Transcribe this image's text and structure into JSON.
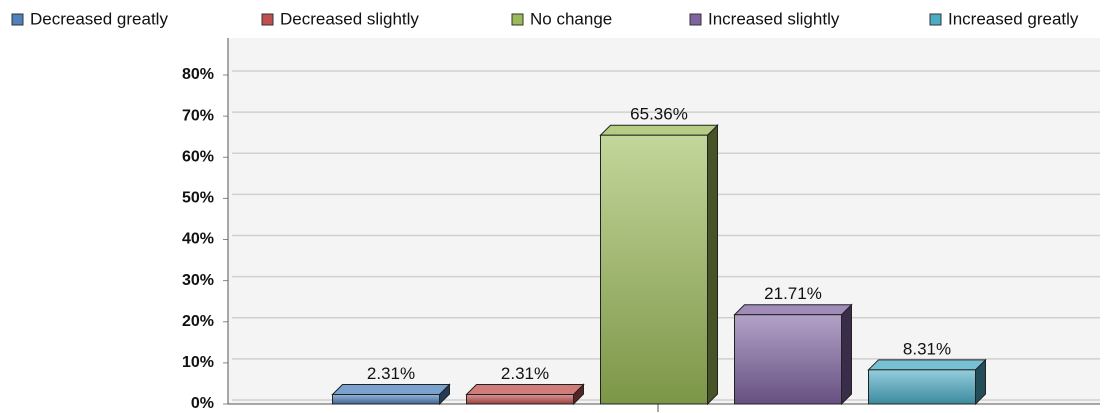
{
  "chart_data": {
    "type": "bar",
    "categories": [
      null
    ],
    "series": [
      {
        "name": "Decreased greatly",
        "color": "#4f81bd",
        "values": [
          2.31
        ],
        "value_labels": [
          "2.31%"
        ]
      },
      {
        "name": "Decreased slightly",
        "color": "#c0504d",
        "values": [
          2.31
        ],
        "value_labels": [
          "2.31%"
        ]
      },
      {
        "name": "No change",
        "color": "#9bbb59",
        "values": [
          65.36
        ],
        "value_labels": [
          "65.36%"
        ]
      },
      {
        "name": "Increased slightly",
        "color": "#8064a2",
        "values": [
          21.71
        ],
        "value_labels": [
          "21.71%"
        ]
      },
      {
        "name": "Increased greatly",
        "color": "#4bacc6",
        "values": [
          8.31
        ],
        "value_labels": [
          "8.31%"
        ]
      }
    ],
    "ylim": [
      0,
      89
    ],
    "yticks": [
      {
        "value": 0,
        "label": "0%"
      },
      {
        "value": 10,
        "label": "10%"
      },
      {
        "value": 20,
        "label": "20%"
      },
      {
        "value": 30,
        "label": "30%"
      },
      {
        "value": 40,
        "label": "40%"
      },
      {
        "value": 50,
        "label": "50%"
      },
      {
        "value": 60,
        "label": "60%"
      },
      {
        "value": 70,
        "label": "70%"
      },
      {
        "value": 80,
        "label": "80%"
      }
    ],
    "grid": true,
    "legend": "top"
  }
}
